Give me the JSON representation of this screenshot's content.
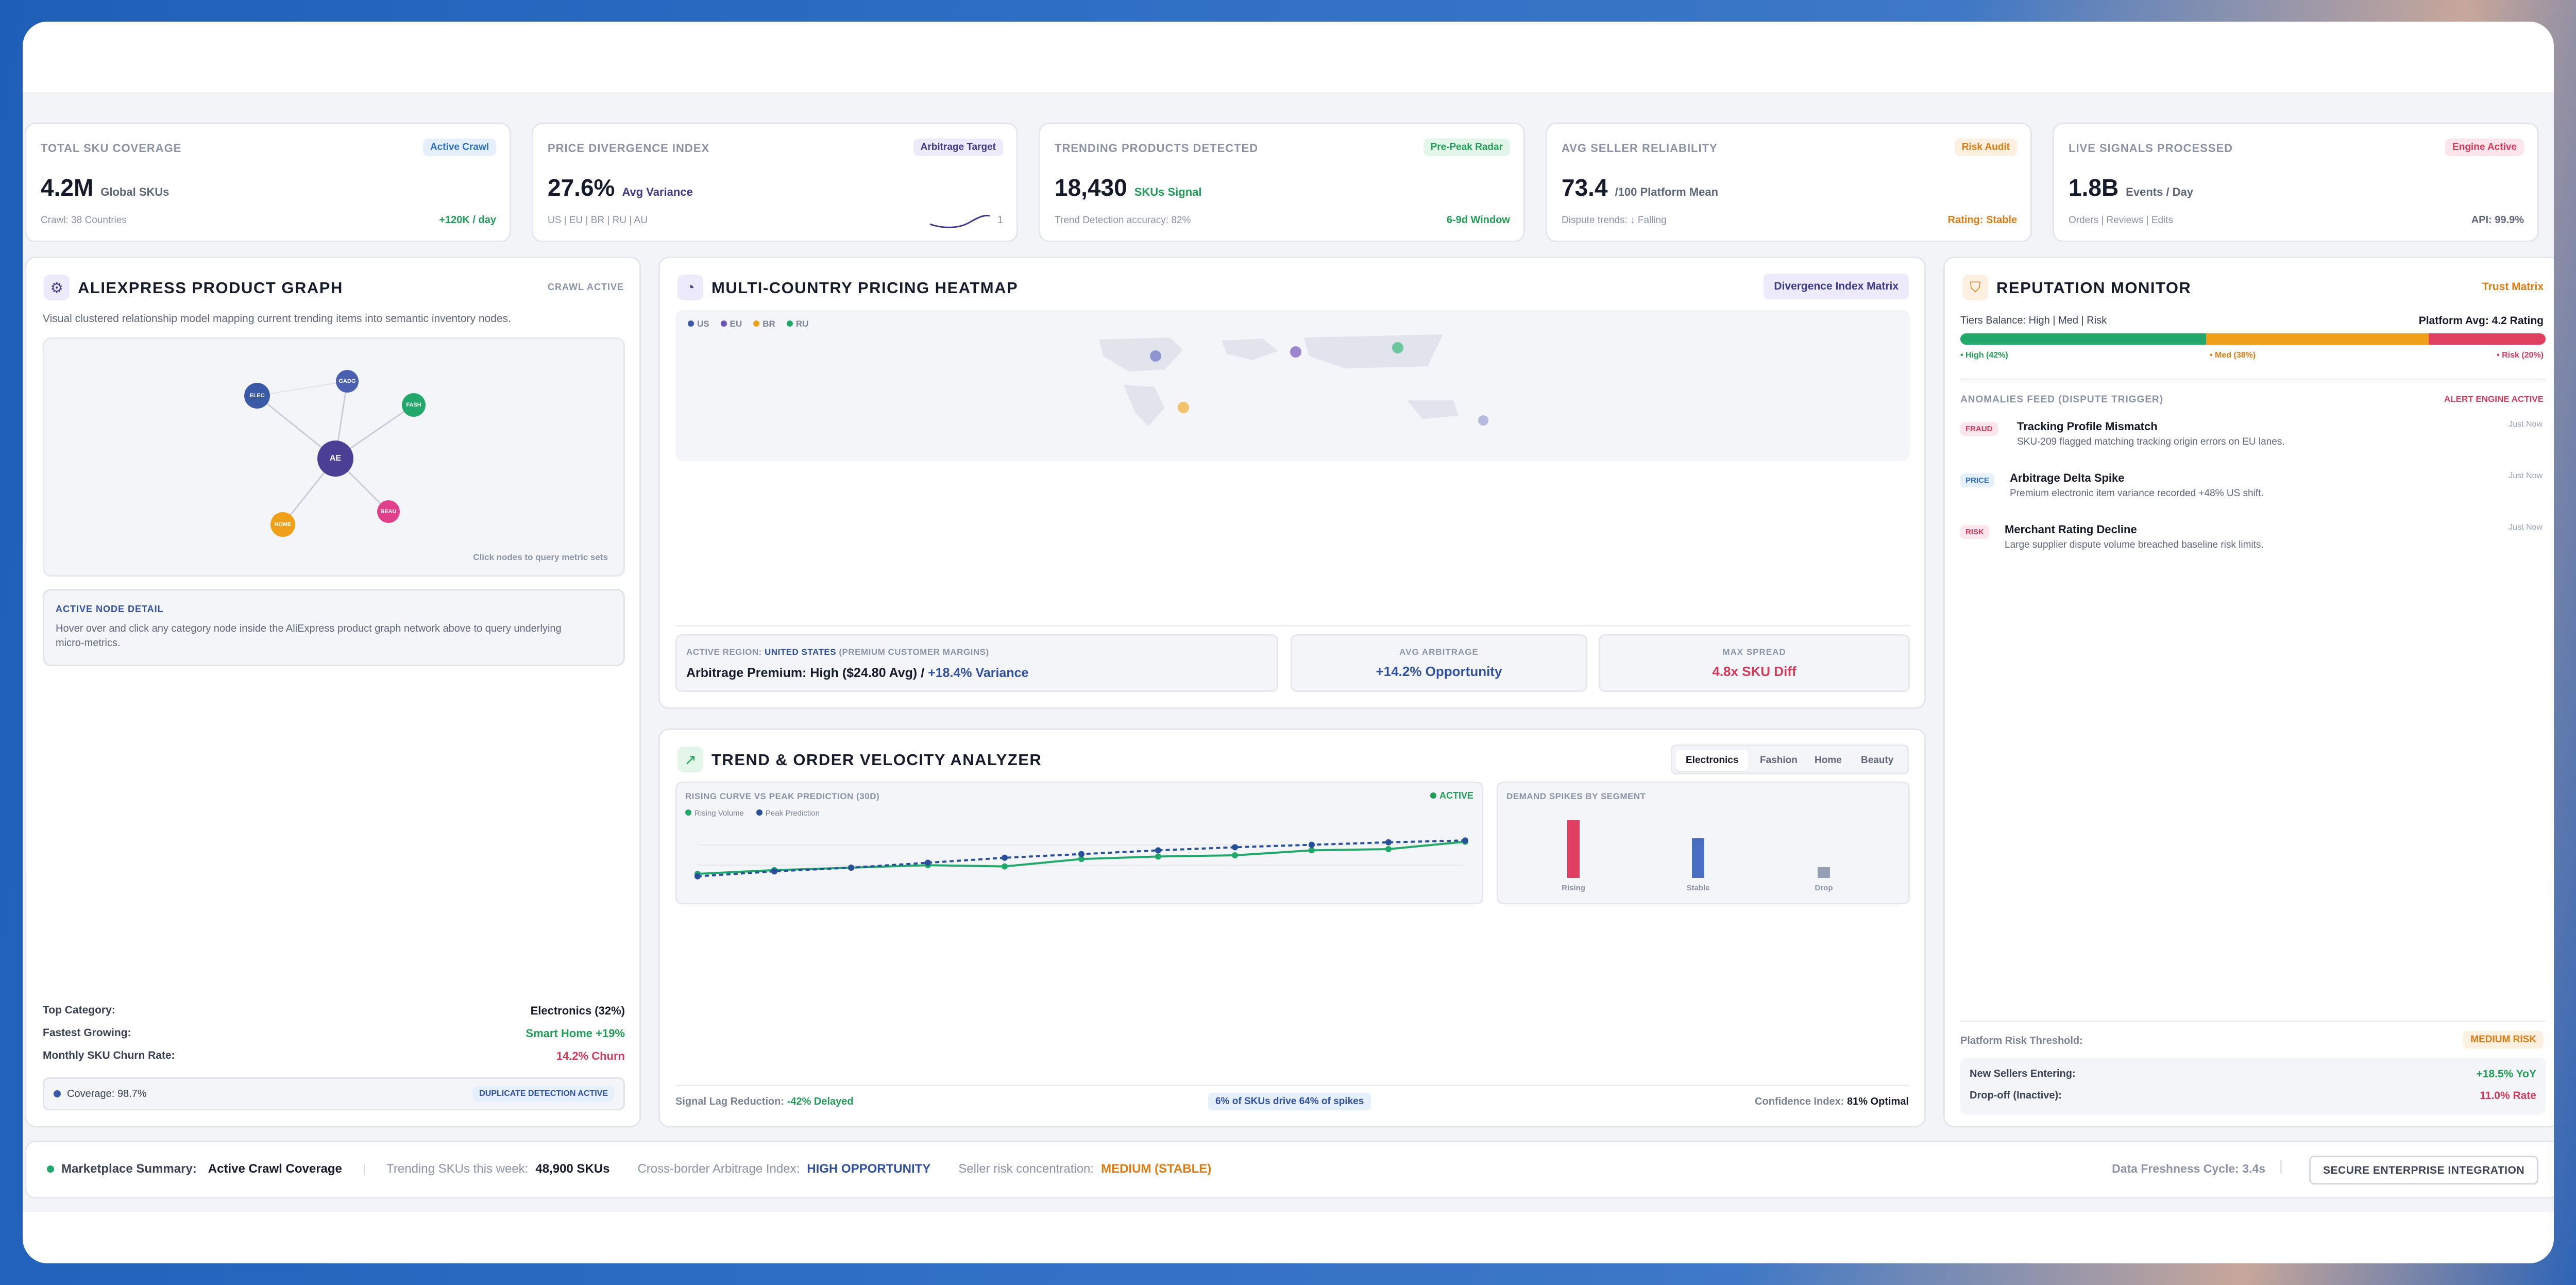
{
  "kpis": [
    {
      "label": "TOTAL SKU COVERAGE",
      "badge": "Active Crawl",
      "badge_color": "#2f6fc5",
      "badge_bg": "#e6effc",
      "value": "4.2M",
      "unit": "Global SKUs",
      "unit_color": "#5d667a",
      "foot": "Crawl: 38 Countries",
      "foot_right": "+120K / day",
      "foot_right_color": "#1f9d55"
    },
    {
      "label": "PRICE DIVERGENCE INDEX",
      "badge": "Arbitrage Target",
      "badge_color": "#3d3a8c",
      "badge_bg": "#eceafb",
      "value": "27.6%",
      "unit": "Avg Variance",
      "unit_color": "#3d3a8c",
      "foot": "US | EU | BR | RU | AU",
      "foot_right": "1",
      "foot_right_color": "#8a93a6"
    },
    {
      "label": "TRENDING PRODUCTS DETECTED",
      "badge": "Pre-Peak Radar",
      "badge_color": "#1f9d55",
      "badge_bg": "#e3f6ea",
      "value": "18,430",
      "unit": "SKUs Signal",
      "unit_color": "#1f9d55",
      "foot": "Trend Detection accuracy: 82%",
      "foot_right": "6-9d Window",
      "foot_right_color": "#1f9d55"
    },
    {
      "label": "AVG SELLER RELIABILITY",
      "badge": "Risk Audit",
      "badge_color": "#e07b12",
      "badge_bg": "#fdf0e1",
      "value": "73.4",
      "unit": "/100   Platform Mean",
      "unit_color": "#5d667a",
      "foot": "Dispute trends: ↓ Falling",
      "foot_right": "Rating: Stable",
      "foot_right_color": "#e07b12"
    },
    {
      "label": "LIVE SIGNALS PROCESSED",
      "badge": "Engine Active",
      "badge_color": "#d63a5a",
      "badge_bg": "#fde6eb",
      "value": "1.8B",
      "unit": "Events / Day",
      "unit_color": "#5d667a",
      "foot": "Orders | Reviews | Edits",
      "foot_right": "API: 99.9%",
      "foot_right_color": "#5d667a"
    }
  ],
  "graph_panel": {
    "title": "ALIEXPRESS PRODUCT GRAPH",
    "status": "CRAWL ACTIVE",
    "description": "Visual clustered relationship model mapping current trending items into semantic inventory nodes.",
    "hint": "Click nodes to query metric sets",
    "nodes": [
      {
        "label": "AE",
        "color": "#4a3f95"
      },
      {
        "label": "ELEC",
        "color": "#3a5aa8"
      },
      {
        "label": "GADG",
        "color": "#4a5fb0"
      },
      {
        "label": "FASH",
        "color": "#22a86b"
      },
      {
        "label": "BEAU",
        "color": "#e0408b"
      },
      {
        "label": "HOME",
        "color": "#f0a018"
      }
    ],
    "detail_title": "ACTIVE NODE DETAIL",
    "detail_text": "Hover over and click any category node inside the AliExpress product graph network above to query underlying micro-metrics.",
    "stats": [
      {
        "label": "Top Category:",
        "value": "Electronics (32%)",
        "color": "#151b2b"
      },
      {
        "label": "Fastest Growing:",
        "value": "Smart Home +19%",
        "color": "#1f9d55"
      },
      {
        "label": "Monthly SKU Churn Rate:",
        "value": "14.2% Churn",
        "color": "#d63a5a"
      }
    ],
    "coverage": "Coverage: 98.7%",
    "coverage_badge": "DUPLICATE DETECTION ACTIVE"
  },
  "heatmap_panel": {
    "title": "MULTI-COUNTRY PRICING HEATMAP",
    "button": "Divergence Index Matrix",
    "legend": [
      {
        "label": "US",
        "color": "#3a5aa8"
      },
      {
        "label": "EU",
        "color": "#6b55b8"
      },
      {
        "label": "BR",
        "color": "#f0a018"
      },
      {
        "label": "RU",
        "color": "#22a86b"
      }
    ],
    "region_label": "ACTIVE REGION:",
    "region_name": "UNITED STATES",
    "region_note": "(PREMIUM CUSTOMER MARGINS)",
    "premium": "Arbitrage Premium: High ($24.80 Avg) /",
    "premium_var": "+18.4% Variance",
    "avg_label": "AVG ARBITRAGE",
    "avg_value": "+14.2% Opportunity",
    "spread_label": "MAX SPREAD",
    "spread_value": "4.8x SKU Diff"
  },
  "trend_panel": {
    "title": "TREND & ORDER VELOCITY ANALYZER",
    "tabs": [
      "Electronics",
      "Fashion",
      "Home",
      "Beauty"
    ],
    "curve_title": "RISING CURVE VS PEAK PREDICTION (30D)",
    "active": "ACTIVE",
    "legend_rising": "Rising Volume",
    "legend_peak": "Peak Prediction",
    "spikes_title": "DEMAND SPIKES BY SEGMENT",
    "footer_left_label": "Signal Lag Reduction:",
    "footer_left_value": "-42% Delayed",
    "footer_mid": "6% of SKUs drive 64% of spikes",
    "footer_right_label": "Confidence Index:",
    "footer_right_value": "81% Optimal"
  },
  "chart_data": [
    {
      "type": "line",
      "title": "RISING CURVE VS PEAK PREDICTION (30D)",
      "x": [
        1,
        2,
        3,
        4,
        5,
        6,
        7,
        8,
        9,
        10,
        11
      ],
      "series": [
        {
          "name": "Rising Volume",
          "color": "#22a86b",
          "values": [
            20,
            26,
            30,
            34,
            32,
            44,
            48,
            50,
            58,
            60,
            72
          ]
        },
        {
          "name": "Peak Prediction",
          "color": "#2a4f9a",
          "values": [
            16,
            24,
            30,
            38,
            46,
            52,
            58,
            63,
            67,
            71,
            74
          ]
        }
      ],
      "ylim": [
        0,
        100
      ]
    },
    {
      "type": "bar",
      "title": "DEMAND SPIKES BY SEGMENT",
      "categories": [
        "Rising",
        "Stable",
        "Drop"
      ],
      "values": [
        80,
        55,
        15
      ],
      "colors": [
        "#e0405f",
        "#4a6fc0",
        "#95a0b4"
      ],
      "ylim": [
        0,
        100
      ]
    }
  ],
  "reputation_panel": {
    "title": "REPUTATION MONITOR",
    "badge": "Trust Matrix",
    "tiers": "Tiers Balance: High | Med | Risk",
    "platform_avg": "Platform Avg: 4.2 Rating",
    "segments": [
      {
        "label": "• High (42%)",
        "share": 42,
        "color": "#22a86b"
      },
      {
        "label": "• Med (38%)",
        "share": 38,
        "color": "#f0a018"
      },
      {
        "label": "• Risk (20%)",
        "share": 20,
        "color": "#e0405f"
      }
    ],
    "feed_title": "ANOMALIES FEED (DISPUTE TRIGGER)",
    "feed_alert": "ALERT ENGINE ACTIVE",
    "feed": [
      {
        "tag": "FRAUD",
        "tag_color": "#d63a5a",
        "tag_bg": "#fde6eb",
        "title": "Tracking Profile Mismatch",
        "desc": "SKU-209 flagged matching tracking origin errors on EU lanes.",
        "time": "Just Now"
      },
      {
        "tag": "PRICE",
        "tag_color": "#2f6fc5",
        "tag_bg": "#e6effc",
        "title": "Arbitrage Delta Spike",
        "desc": "Premium electronic item variance recorded +48% US shift.",
        "time": "Just Now"
      },
      {
        "tag": "RISK",
        "tag_color": "#d63a5a",
        "tag_bg": "#fde6eb",
        "title": "Merchant Rating Decline",
        "desc": "Large supplier dispute volume breached baseline risk limits.",
        "time": "Just Now"
      }
    ],
    "threshold_label": "Platform Risk Threshold:",
    "threshold_value": "MEDIUM RISK",
    "sellers_label": "New Sellers Entering:",
    "sellers_value": "+18.5% YoY",
    "dropoff_label": "Drop-off (Inactive):",
    "dropoff_value": "11.0% Rate"
  },
  "summary_bar": {
    "label": "Marketplace Summary:",
    "status": "Active Crawl Coverage",
    "trending_label": "Trending SKUs this week:",
    "trending_value": "48,900 SKUs",
    "arbitrage_label": "Cross-border Arbitrage Index:",
    "arbitrage_value": "HIGH OPPORTUNITY",
    "risk_label": "Seller risk concentration:",
    "risk_value": "MEDIUM (STABLE)",
    "freshness": "Data Freshness Cycle: 3.4s",
    "cta": "SECURE ENTERPRISE INTEGRATION"
  }
}
